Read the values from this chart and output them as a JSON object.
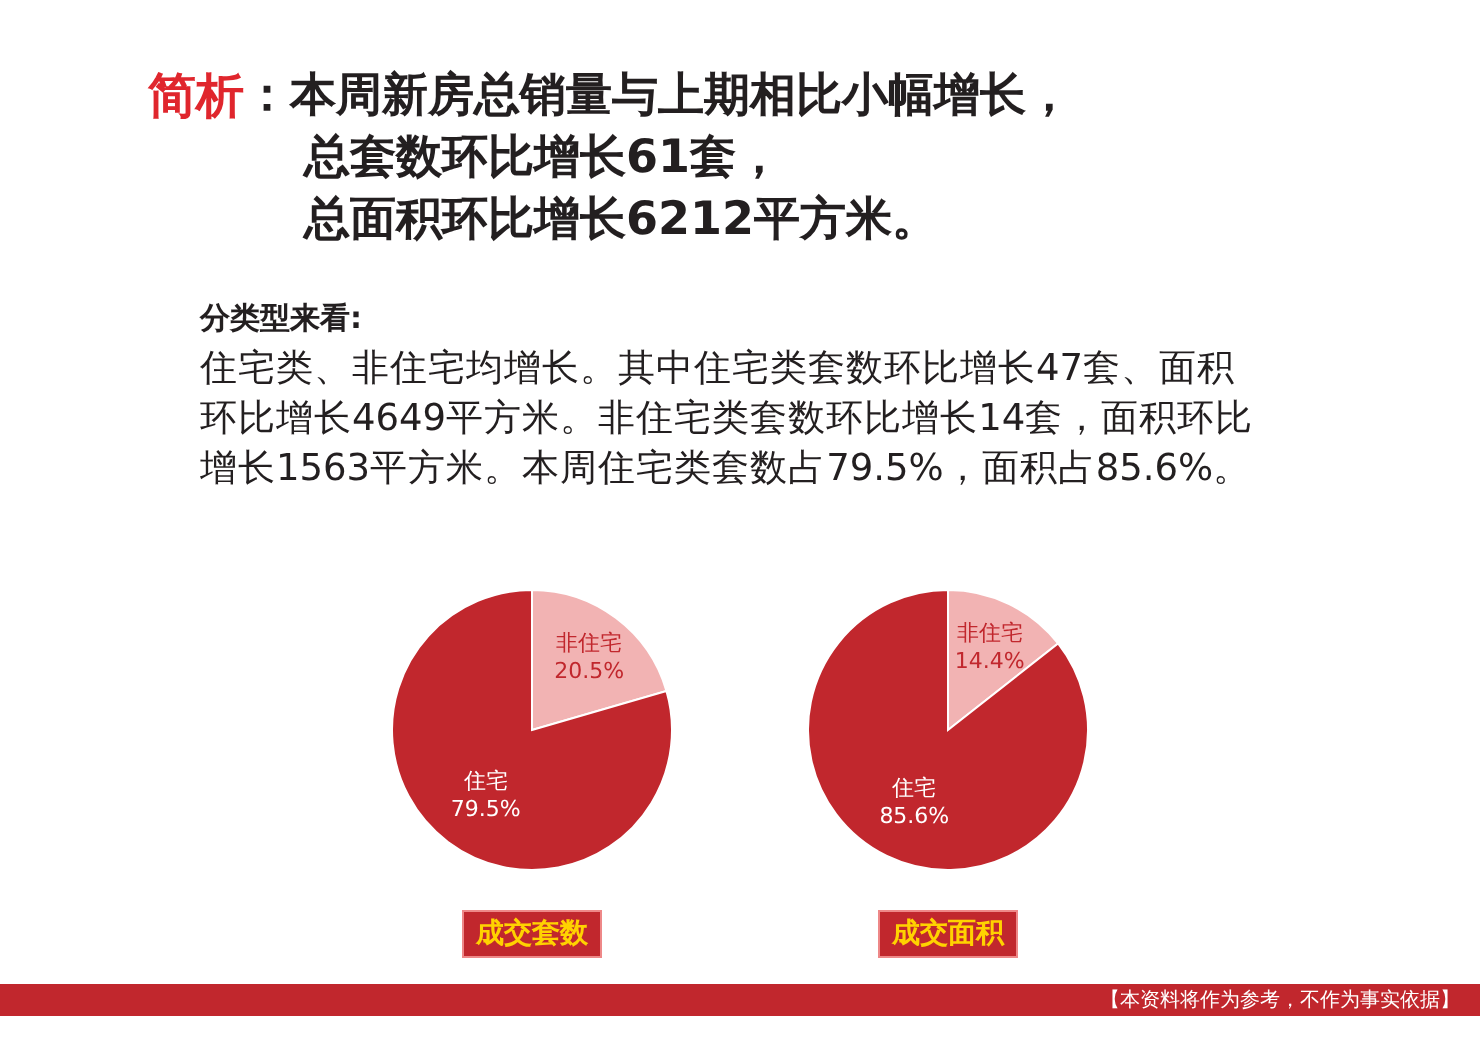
{
  "chart_data": [
    {
      "type": "other",
      "title": "简析",
      "subtitle": "：本周新房总销量与上期相比小幅增长，",
      "annotations": [
        "总套数环比增长61套，",
        "总面积环比增长6212平方米。",
        "分类型来看:",
        "住宅类、非住宅均增长。其中住宅类套数环比增长47套、面积环比增长4649平方米。非住宅类套数环比增长14套，面积环比增长1563平方米。本周住宅类套数占79.5%，面积占85.6%。",
        "【本资料将作为参考，不作为事实依据】"
      ]
    },
    {
      "type": "pie",
      "title": "成交套数",
      "categories": [
        "非住宅",
        "住宅"
      ],
      "values": [
        20.5,
        79.5
      ],
      "colors": [
        "#f2b3b3",
        "#c1272d"
      ],
      "value_labels": [
        "20.5%",
        "79.5%"
      ]
    },
    {
      "type": "pie",
      "title": "成交面积",
      "categories": [
        "非住宅",
        "住宅"
      ],
      "values": [
        14.4,
        85.6
      ],
      "colors": [
        "#f2b3b3",
        "#c1272d"
      ],
      "value_labels": [
        "14.4%",
        "85.6%"
      ]
    }
  ]
}
